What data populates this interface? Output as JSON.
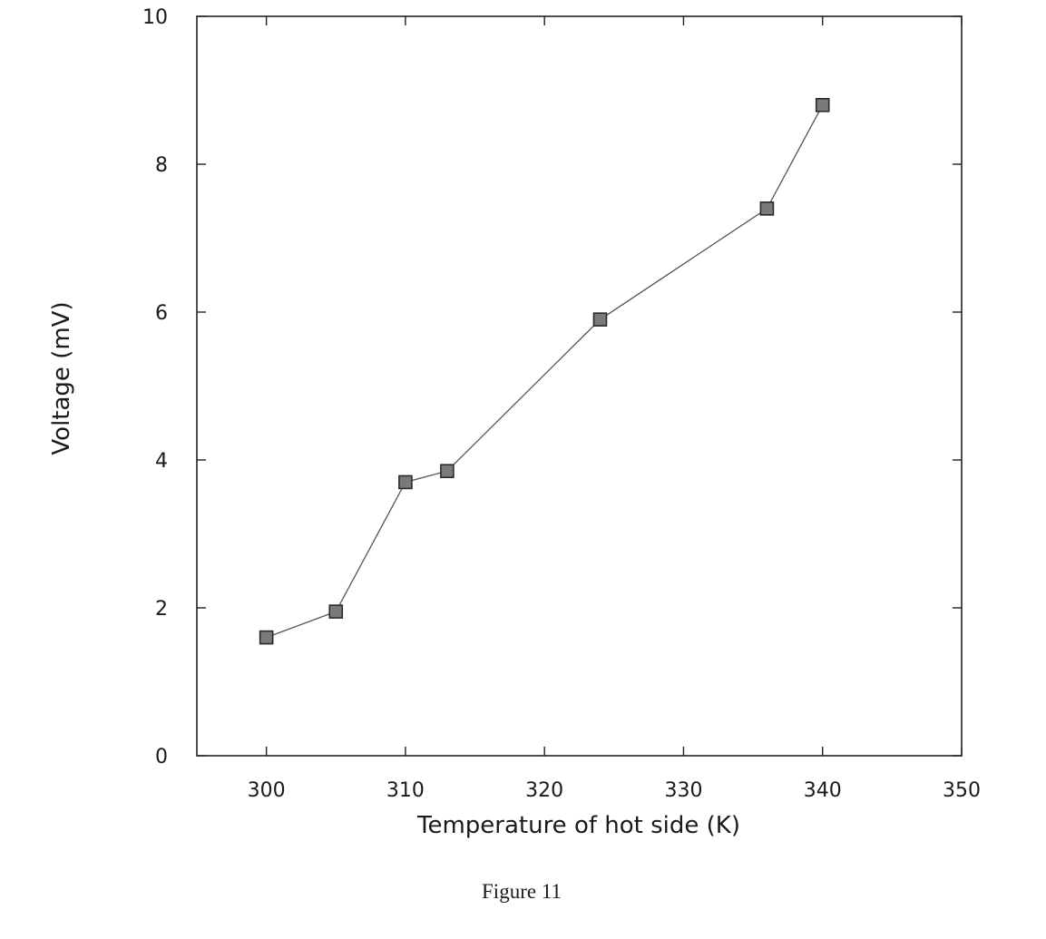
{
  "figure_caption": "Figure 11",
  "chart_data": {
    "type": "line",
    "xlabel": "Temperature of hot side (K)",
    "ylabel": "Voltage (mV)",
    "xlim": [
      295,
      350
    ],
    "ylim": [
      0,
      10
    ],
    "x_ticks": [
      300,
      310,
      320,
      330,
      340,
      350
    ],
    "y_ticks": [
      0,
      2,
      4,
      6,
      8,
      10
    ],
    "x_tick_labels": [
      "300",
      "310",
      "320",
      "330",
      "340",
      "350"
    ],
    "y_tick_labels": [
      "0",
      "2",
      "4",
      "6",
      "8",
      "10"
    ],
    "grid": false,
    "legend": "none",
    "marker": "square",
    "colors": {
      "line": "#555555",
      "marker_fill": "#7a7a7a",
      "marker_edge": "#2a2a2a",
      "axis": "#222222"
    },
    "series": [
      {
        "x": [
          300,
          305,
          310,
          313,
          324,
          336,
          340
        ],
        "y": [
          1.6,
          1.95,
          3.7,
          3.85,
          5.9,
          7.4,
          8.8
        ]
      }
    ]
  }
}
